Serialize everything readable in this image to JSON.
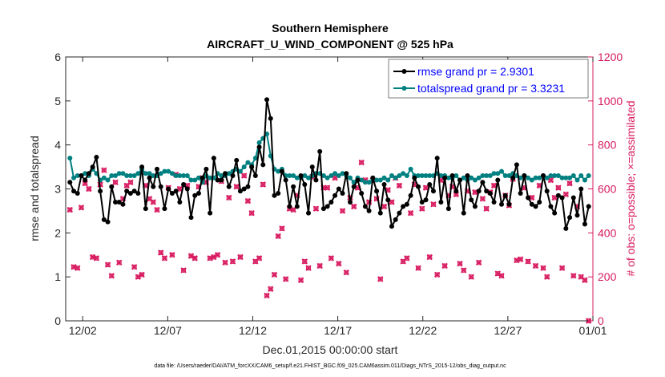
{
  "chart_data": {
    "type": "line",
    "title": "Southern Hemisphere",
    "subtitle": "AIRCRAFT_U_WIND_COMPONENT @ 525 hPa",
    "xlabel": "Dec.01,2015 00:00:00 start",
    "ylabel": "rmse and totalspread",
    "ylabel_right": "# of obs: o=possible; ×=assimilated",
    "footer": "data file: /Users/raeder/DAI/ATM_forcXX/CAM6_setup/f.e21.FHIST_BGC.f09_025.CAM6assim.011/Diags_NTrS_2015-12/obs_diag_output.nc",
    "xlim": [
      0.5,
      31.5
    ],
    "ylim": [
      0,
      6
    ],
    "ylim_right": [
      0,
      1200
    ],
    "x_ticks": [
      1.5,
      6.5,
      11.5,
      16.5,
      21.5,
      26.5,
      31.5
    ],
    "x_tick_labels": [
      "12/02",
      "12/07",
      "12/12",
      "12/17",
      "12/22",
      "12/27",
      "01/01"
    ],
    "y_ticks": [
      0,
      1,
      2,
      3,
      4,
      5,
      6
    ],
    "y_ticks_right": [
      0,
      200,
      400,
      600,
      800,
      1000,
      1200
    ],
    "colors": {
      "rmse": "#000000",
      "spread": "#008080",
      "obs": "#d81b60",
      "legend_text": "#0000ff"
    },
    "series": [
      {
        "name": "rmse grand pr = 2.9301",
        "axis": "left",
        "values": [
          3.15,
          2.95,
          2.9,
          3.3,
          3.2,
          3.35,
          3.5,
          3.72,
          2.95,
          2.3,
          2.25,
          3.05,
          2.7,
          2.7,
          2.65,
          2.95,
          2.9,
          2.95,
          2.9,
          3.5,
          2.55,
          3.25,
          3.05,
          3.45,
          3.05,
          2.55,
          3.0,
          2.9,
          2.95,
          2.7,
          3.1,
          3.0,
          2.35,
          2.85,
          2.9,
          3.25,
          3.45,
          2.45,
          3.7,
          3.2,
          3.2,
          3.35,
          3.05,
          3.3,
          3.65,
          2.95,
          3.0,
          3.05,
          3.5,
          3.3,
          3.95,
          3.55,
          5.03,
          4.6,
          2.85,
          2.9,
          3.4,
          3.2,
          2.6,
          3.05,
          2.6,
          3.3,
          3.1,
          2.45,
          3.5,
          3.2,
          3.85,
          2.55,
          2.6,
          2.7,
          2.85,
          3.0,
          2.9,
          3.35,
          2.7,
          3.05,
          3.2,
          2.9,
          2.6,
          2.5,
          3.25,
          2.95,
          2.45,
          3.1,
          2.75,
          2.15,
          2.3,
          2.45,
          2.6,
          2.65,
          2.85,
          3.25,
          3.05,
          2.7,
          2.75,
          3.1,
          2.95,
          3.7,
          2.7,
          3.25,
          2.55,
          3.3,
          2.95,
          3.2,
          2.45,
          3.3,
          2.75,
          2.6,
          2.95,
          3.15,
          2.95,
          2.9,
          2.7,
          3.2,
          2.65,
          2.85,
          2.65,
          3.25,
          3.55,
          2.9,
          3.3,
          2.8,
          2.65,
          2.6,
          2.7,
          3.3,
          2.95,
          2.6,
          2.45,
          2.85,
          2.8,
          2.1,
          2.35,
          2.8,
          2.4,
          3.0,
          2.2,
          2.6
        ]
      },
      {
        "name": "totalspread grand pr = 3.3231",
        "axis": "left",
        "values": [
          3.7,
          3.25,
          3.3,
          3.3,
          3.35,
          3.3,
          3.45,
          3.35,
          3.2,
          3.25,
          3.2,
          3.3,
          3.3,
          3.35,
          3.35,
          3.3,
          3.3,
          3.3,
          3.35,
          3.45,
          3.35,
          3.35,
          3.3,
          3.3,
          3.35,
          3.4,
          3.4,
          3.35,
          3.3,
          3.3,
          3.3,
          3.3,
          3.2,
          3.2,
          3.25,
          3.15,
          3.3,
          3.25,
          3.25,
          3.35,
          3.3,
          3.3,
          3.35,
          3.4,
          3.45,
          3.4,
          3.5,
          3.6,
          3.55,
          3.7,
          4.05,
          4.15,
          4.25,
          3.75,
          3.45,
          3.4,
          3.45,
          3.3,
          3.3,
          3.3,
          3.25,
          3.25,
          3.3,
          3.25,
          3.3,
          3.35,
          3.35,
          3.3,
          3.25,
          3.3,
          3.35,
          3.3,
          3.35,
          3.3,
          3.25,
          3.15,
          3.25,
          3.2,
          3.15,
          3.15,
          3.2,
          3.2,
          3.2,
          3.25,
          3.2,
          3.3,
          3.25,
          3.3,
          3.35,
          3.3,
          3.45,
          3.3,
          3.3,
          3.3,
          3.3,
          3.3,
          3.3,
          3.35,
          3.3,
          3.3,
          3.25,
          3.25,
          3.3,
          3.2,
          3.25,
          3.2,
          3.25,
          3.2,
          3.25,
          3.3,
          3.3,
          3.3,
          3.35,
          3.35,
          3.4,
          3.3,
          3.3,
          3.35,
          3.3,
          3.25,
          3.3,
          3.25,
          3.2,
          3.25,
          3.25,
          3.3,
          3.25,
          3.3,
          3.3,
          3.3,
          3.25,
          3.25,
          3.25,
          3.3,
          3.2,
          3.3,
          3.2,
          3.3
        ]
      },
      {
        "name": "# of obs",
        "axis": "right",
        "values": [
          505,
          245,
          240,
          515,
          625,
          600,
          290,
          285,
          620,
          685,
          255,
          205,
          630,
          265,
          555,
          615,
          630,
          245,
          200,
          210,
          615,
          555,
          540,
          505,
          310,
          285,
          605,
          300,
          665,
          600,
          230,
          615,
          295,
          285,
          610,
          650,
          630,
          285,
          290,
          300,
          635,
          265,
          560,
          270,
          610,
          290,
          660,
          545,
          490,
          270,
          285,
          620,
          115,
          145,
          210,
          385,
          420,
          190,
          510,
          505,
          570,
          185,
          270,
          240,
          655,
          510,
          250,
          605,
          605,
          285,
          650,
          260,
          500,
          220,
          560,
          520,
          605,
          720,
          640,
          540,
          640,
          555,
          190,
          520,
          595,
          540,
          650,
          615,
          270,
          285,
          490,
          620,
          240,
          510,
          605,
          290,
          530,
          210,
          640,
          250,
          570,
          610,
          575,
          260,
          230,
          590,
          200,
          585,
          265,
          555,
          510,
          585,
          615,
          215,
          205,
          570,
          525,
          645,
          275,
          280,
          605,
          270,
          560,
          250,
          615,
          240,
          200,
          640,
          560,
          605,
          240,
          575,
          625,
          205,
          520,
          200,
          185,
          0
        ]
      }
    ]
  }
}
